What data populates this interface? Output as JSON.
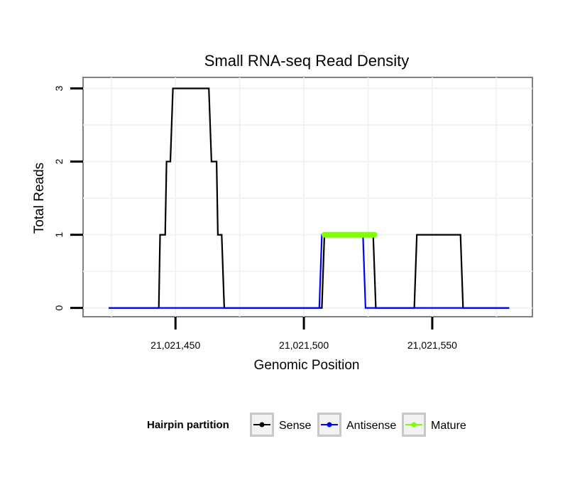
{
  "chart_data": {
    "type": "line",
    "title": "Small RNA-seq Read Density",
    "xlabel": "Genomic Position",
    "ylabel": "Total Reads",
    "xlim": [
      21021414,
      21021589
    ],
    "ylim": [
      -0.12,
      3.15
    ],
    "x_ticks": [
      21021450,
      21021500,
      21021550
    ],
    "x_tick_labels": [
      "21,021,450",
      "21,021,500",
      "21,021,550"
    ],
    "y_ticks": [
      0,
      1,
      2,
      3
    ],
    "y_tick_labels": [
      "0",
      "1",
      "2",
      "3"
    ],
    "grid": true,
    "legend": {
      "title": "Hairpin partition",
      "position": "bottom"
    },
    "series": [
      {
        "name": "Sense",
        "color": "#000000",
        "x": [
          21021424,
          21021443.5,
          21021444,
          21021446,
          21021446.5,
          21021448,
          21021449,
          21021463,
          21021464,
          21021466,
          21021466.5,
          21021468,
          21021469,
          21021507,
          21021508,
          21021527,
          21021528,
          21021543,
          21021544,
          21021561,
          21021562,
          21021580
        ],
        "y": [
          0,
          0,
          1,
          1,
          2,
          2,
          3,
          3,
          2,
          2,
          1,
          1,
          0,
          0,
          1,
          1,
          0,
          0,
          1,
          1,
          0,
          0
        ]
      },
      {
        "name": "Antisense",
        "color": "#0000ff",
        "x": [
          21021424,
          21021506,
          21021507,
          21021523,
          21021524,
          21021580
        ],
        "y": [
          0,
          0,
          1,
          1,
          0,
          0
        ]
      },
      {
        "name": "Mature",
        "color": "#7fff00",
        "x": [
          21021508,
          21021527.5
        ],
        "y": [
          1,
          1
        ]
      }
    ]
  }
}
